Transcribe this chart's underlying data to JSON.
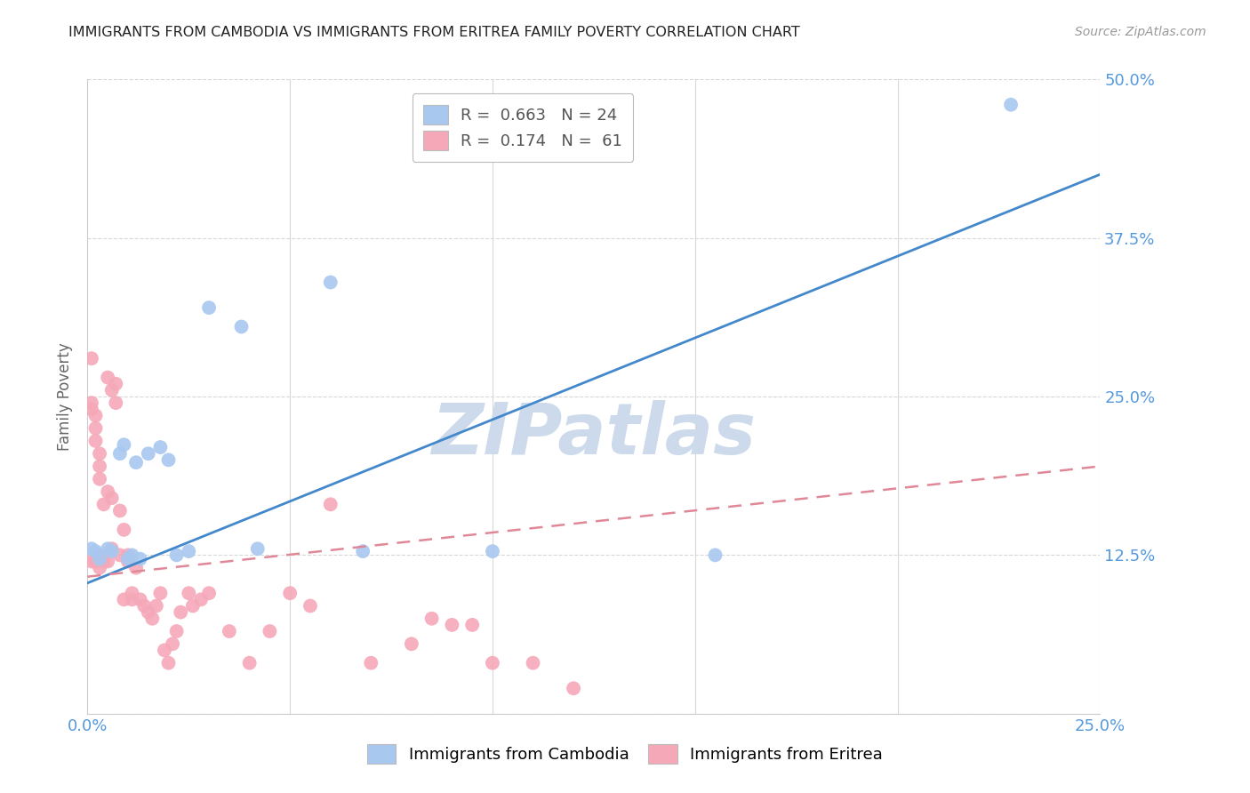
{
  "title": "IMMIGRANTS FROM CAMBODIA VS IMMIGRANTS FROM ERITREA FAMILY POVERTY CORRELATION CHART",
  "source_text": "Source: ZipAtlas.com",
  "ylabel": "Family Poverty",
  "xlim": [
    0.0,
    0.25
  ],
  "ylim": [
    0.0,
    0.5
  ],
  "xticks": [
    0.0,
    0.05,
    0.1,
    0.15,
    0.2,
    0.25
  ],
  "yticks": [
    0.0,
    0.125,
    0.25,
    0.375,
    0.5
  ],
  "xticklabels": [
    "0.0%",
    "",
    "",
    "",
    "",
    "25.0%"
  ],
  "yticklabels_right": [
    "",
    "12.5%",
    "25.0%",
    "37.5%",
    "50.0%"
  ],
  "background_color": "#ffffff",
  "grid_color": "#d8d8d8",
  "title_color": "#222222",
  "watermark_text": "ZIPatlas",
  "watermark_color": "#ccdaec",
  "cambodia_color": "#a8c8f0",
  "eritrea_color": "#f5a8b8",
  "cambodia_line_color": "#4488cc",
  "eritrea_line_color": "#e08898",
  "tick_color": "#5599dd",
  "R_cambodia": 0.663,
  "N_cambodia": 24,
  "R_eritrea": 0.174,
  "N_eritrea": 61,
  "cambodia_line": [
    0.0,
    0.103,
    0.25,
    0.425
  ],
  "eritrea_line": [
    0.0,
    0.108,
    0.25,
    0.195
  ],
  "cambodia_x": [
    0.001,
    0.002,
    0.003,
    0.005,
    0.006,
    0.008,
    0.009,
    0.01,
    0.011,
    0.012,
    0.013,
    0.015,
    0.018,
    0.02,
    0.022,
    0.025,
    0.03,
    0.038,
    0.042,
    0.06,
    0.068,
    0.1,
    0.155,
    0.228
  ],
  "cambodia_y": [
    0.13,
    0.128,
    0.122,
    0.13,
    0.128,
    0.205,
    0.212,
    0.122,
    0.125,
    0.198,
    0.122,
    0.205,
    0.21,
    0.2,
    0.125,
    0.128,
    0.32,
    0.305,
    0.13,
    0.34,
    0.128,
    0.128,
    0.125,
    0.48
  ],
  "eritrea_x": [
    0.001,
    0.001,
    0.001,
    0.001,
    0.002,
    0.002,
    0.002,
    0.002,
    0.003,
    0.003,
    0.003,
    0.003,
    0.003,
    0.004,
    0.004,
    0.005,
    0.005,
    0.005,
    0.006,
    0.006,
    0.006,
    0.007,
    0.007,
    0.008,
    0.008,
    0.009,
    0.009,
    0.01,
    0.01,
    0.011,
    0.011,
    0.012,
    0.013,
    0.014,
    0.015,
    0.016,
    0.017,
    0.018,
    0.019,
    0.02,
    0.021,
    0.022,
    0.023,
    0.025,
    0.026,
    0.028,
    0.03,
    0.035,
    0.04,
    0.045,
    0.05,
    0.055,
    0.06,
    0.07,
    0.08,
    0.085,
    0.09,
    0.095,
    0.1,
    0.11,
    0.12
  ],
  "eritrea_y": [
    0.28,
    0.245,
    0.24,
    0.12,
    0.235,
    0.225,
    0.215,
    0.12,
    0.205,
    0.195,
    0.185,
    0.125,
    0.115,
    0.165,
    0.12,
    0.265,
    0.175,
    0.12,
    0.255,
    0.17,
    0.13,
    0.26,
    0.245,
    0.125,
    0.16,
    0.145,
    0.09,
    0.125,
    0.12,
    0.095,
    0.09,
    0.115,
    0.09,
    0.085,
    0.08,
    0.075,
    0.085,
    0.095,
    0.05,
    0.04,
    0.055,
    0.065,
    0.08,
    0.095,
    0.085,
    0.09,
    0.095,
    0.065,
    0.04,
    0.065,
    0.095,
    0.085,
    0.165,
    0.04,
    0.055,
    0.075,
    0.07,
    0.07,
    0.04,
    0.04,
    0.02
  ]
}
